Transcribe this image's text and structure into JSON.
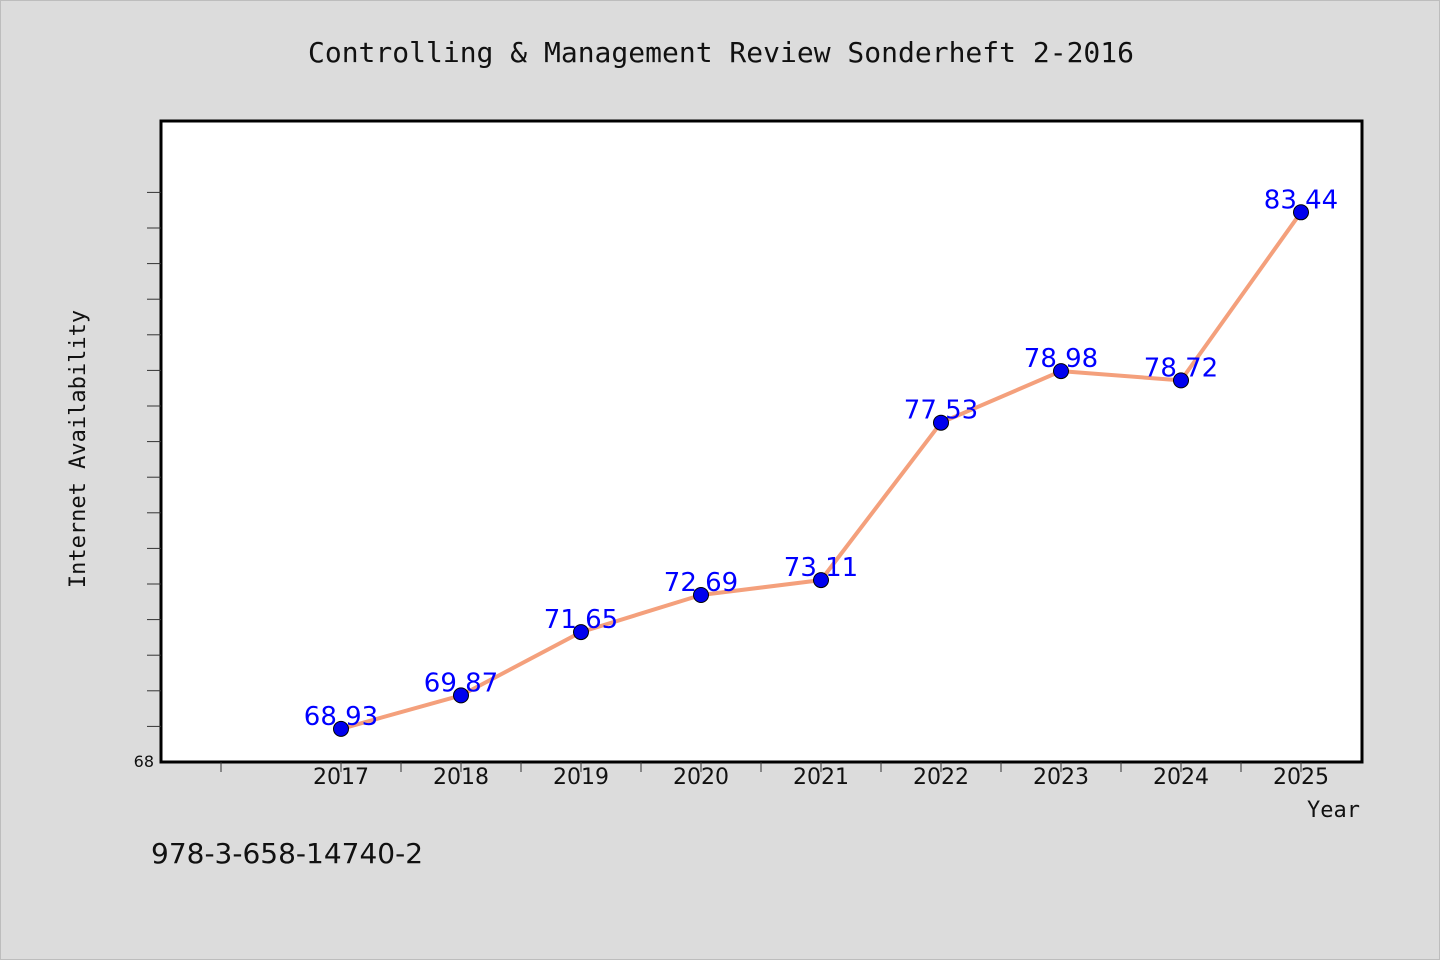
{
  "chart_data": {
    "type": "line",
    "title": "Controlling & Management Review Sonderheft 2-2016",
    "xlabel": "Year",
    "ylabel": "Internet Availability",
    "categories": [
      "2017",
      "2018",
      "2019",
      "2020",
      "2021",
      "2022",
      "2023",
      "2024",
      "2025"
    ],
    "series": [
      {
        "values": [
          68.93,
          69.87,
          71.65,
          72.69,
          73.11,
          77.53,
          78.98,
          78.72,
          83.44
        ]
      }
    ],
    "data_labels": [
      "68.93",
      "69.87",
      "71.65",
      "72.69",
      "73.11",
      "77.53",
      "78.98",
      "78.72",
      "83.44"
    ],
    "ylim": [
      68,
      86
    ],
    "y_tick_labels": [
      "68"
    ],
    "grid": false,
    "legend": "none",
    "colors": {
      "line": "#f4a07c",
      "marker": "#0000ee",
      "label": "#0000ff",
      "plot_bg": "#ffffff",
      "page_bg": "#dcdcdc"
    }
  },
  "footer": {
    "isbn": "978-3-658-14740-2"
  }
}
